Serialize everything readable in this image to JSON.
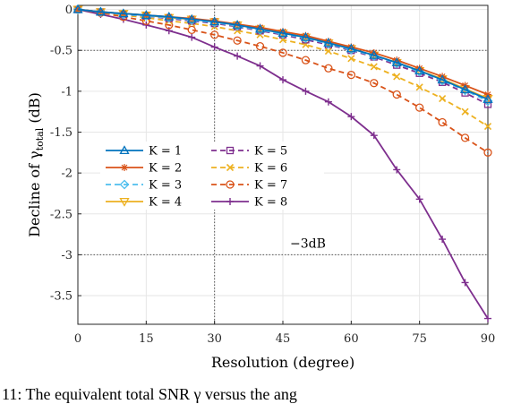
{
  "chart_data": {
    "type": "line",
    "xlabel": "Resolution (degree)",
    "ylabel_main": "Decline of γ",
    "ylabel_sub": "total",
    "ylabel_unit": " (dB)",
    "xlim": [
      0,
      90
    ],
    "ylim": [
      -3.85,
      0.05
    ],
    "xticks": [
      0,
      15,
      30,
      45,
      60,
      75,
      90
    ],
    "yticks": [
      0,
      -0.5,
      -1,
      -1.5,
      -2,
      -2.5,
      -3,
      -3.5
    ],
    "ytick_labels": [
      "0",
      "-0.5",
      "-1",
      "-1.5",
      "-2",
      "-2.5",
      "-3",
      "-3.5"
    ],
    "grid": true,
    "reference_lines": {
      "y": [
        -0.5,
        -3
      ],
      "x": [
        30
      ]
    },
    "annotation": "−3dB",
    "annotation_at": [
      45,
      -3
    ],
    "x": [
      0,
      5,
      10,
      15,
      20,
      25,
      30,
      35,
      40,
      45,
      50,
      55,
      60,
      65,
      70,
      75,
      80,
      85,
      90
    ],
    "series": [
      {
        "name": "K = 1",
        "color": "#0072BD",
        "marker": "triangle-up",
        "dash": "solid",
        "values": [
          0,
          -0.03,
          -0.05,
          -0.07,
          -0.09,
          -0.12,
          -0.15,
          -0.19,
          -0.24,
          -0.29,
          -0.34,
          -0.41,
          -0.48,
          -0.56,
          -0.65,
          -0.75,
          -0.86,
          -0.98,
          -1.1
        ]
      },
      {
        "name": "K = 2",
        "color": "#D95319",
        "marker": "star",
        "dash": "solid",
        "values": [
          0,
          -0.03,
          -0.05,
          -0.07,
          -0.09,
          -0.11,
          -0.14,
          -0.18,
          -0.22,
          -0.27,
          -0.32,
          -0.39,
          -0.46,
          -0.53,
          -0.62,
          -0.72,
          -0.82,
          -0.93,
          -1.04
        ]
      },
      {
        "name": "K = 3",
        "color": "#4DBEEE",
        "marker": "diamond",
        "dash": "dashed",
        "values": [
          0,
          -0.03,
          -0.06,
          -0.08,
          -0.1,
          -0.13,
          -0.16,
          -0.2,
          -0.25,
          -0.3,
          -0.35,
          -0.42,
          -0.49,
          -0.57,
          -0.66,
          -0.76,
          -0.87,
          -0.99,
          -1.12
        ]
      },
      {
        "name": "K = 4",
        "color": "#EDB120",
        "marker": "triangle-down",
        "dash": "solid",
        "values": [
          0,
          -0.03,
          -0.05,
          -0.07,
          -0.1,
          -0.12,
          -0.15,
          -0.19,
          -0.24,
          -0.29,
          -0.34,
          -0.41,
          -0.48,
          -0.56,
          -0.65,
          -0.75,
          -0.85,
          -0.97,
          -1.09
        ]
      },
      {
        "name": "K = 5",
        "color": "#7E2F8E",
        "marker": "square",
        "dash": "dashed",
        "values": [
          0,
          -0.03,
          -0.06,
          -0.08,
          -0.11,
          -0.14,
          -0.17,
          -0.21,
          -0.26,
          -0.31,
          -0.37,
          -0.43,
          -0.5,
          -0.58,
          -0.68,
          -0.78,
          -0.89,
          -1.02,
          -1.16
        ]
      },
      {
        "name": "K = 6",
        "color": "#EDB120",
        "marker": "x",
        "dash": "dashed",
        "values": [
          0,
          -0.03,
          -0.07,
          -0.1,
          -0.14,
          -0.17,
          -0.21,
          -0.26,
          -0.31,
          -0.37,
          -0.43,
          -0.51,
          -0.6,
          -0.7,
          -0.82,
          -0.95,
          -1.09,
          -1.25,
          -1.43
        ]
      },
      {
        "name": "K = 7",
        "color": "#D95319",
        "marker": "circle",
        "dash": "dashed",
        "values": [
          0,
          -0.04,
          -0.09,
          -0.14,
          -0.19,
          -0.25,
          -0.31,
          -0.38,
          -0.45,
          -0.53,
          -0.62,
          -0.72,
          -0.8,
          -0.9,
          -1.04,
          -1.2,
          -1.38,
          -1.57,
          -1.75
        ]
      },
      {
        "name": "K = 8",
        "color": "#7E2F8E",
        "marker": "plus",
        "dash": "solid",
        "values": [
          0,
          -0.06,
          -0.12,
          -0.19,
          -0.26,
          -0.34,
          -0.46,
          -0.57,
          -0.69,
          -0.86,
          -1.0,
          -1.13,
          -1.31,
          -1.54,
          -1.96,
          -2.32,
          -2.81,
          -3.34,
          -3.78
        ]
      }
    ]
  },
  "caption": "11: The equivalent total SNR γ versus the ang"
}
